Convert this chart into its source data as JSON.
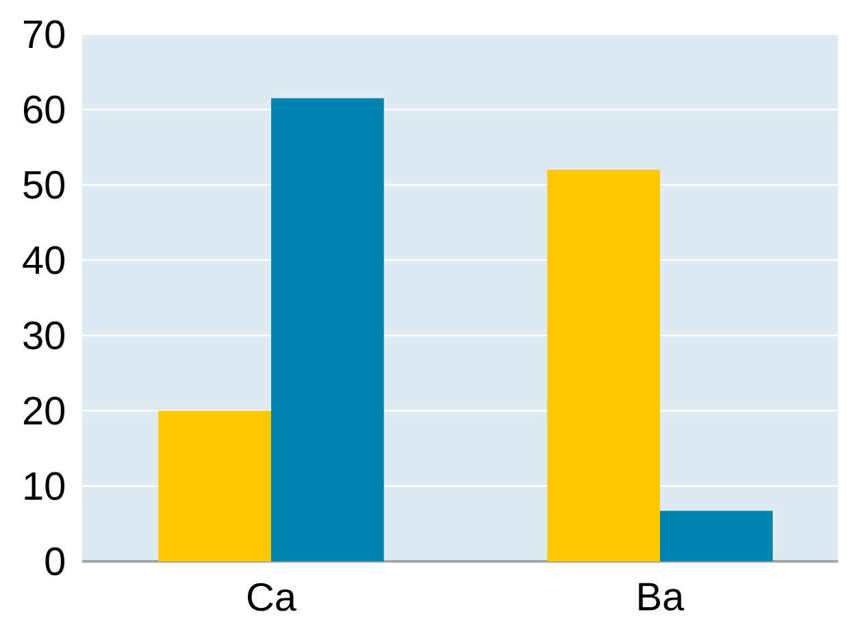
{
  "chart_data": {
    "type": "bar",
    "categories": [
      "Ca",
      "Ba"
    ],
    "series": [
      {
        "color": "#ffc800",
        "values": [
          20,
          52
        ]
      },
      {
        "color": "#0083ad",
        "values": [
          61.5,
          6.7
        ]
      }
    ],
    "ylim": [
      0,
      70
    ],
    "yticks": [
      0,
      10,
      20,
      30,
      40,
      50,
      60,
      70
    ],
    "grid": "y"
  }
}
